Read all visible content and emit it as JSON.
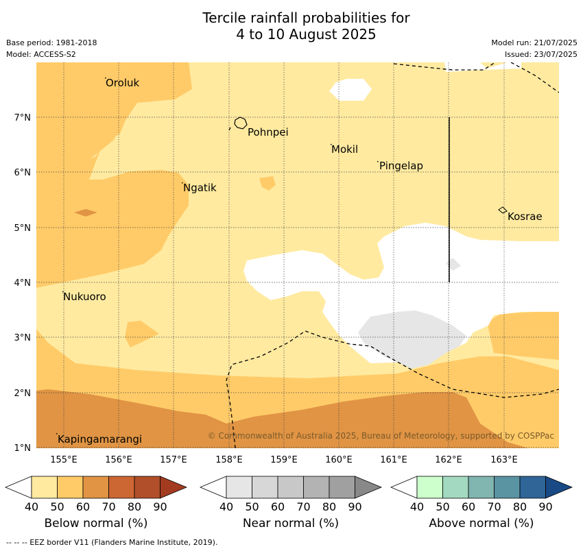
{
  "header": {
    "title_line1": "Tercile rainfall probabilities for",
    "title_line2": "4 to 10 August 2025",
    "base_period": "Base period: 1981-2018",
    "model": "Model: ACCESS-S2",
    "model_run": "Model run: 21/07/2025",
    "issued": "Issued: 23/07/2025"
  },
  "map": {
    "x_ticks": [
      "155°E",
      "156°E",
      "157°E",
      "158°E",
      "159°E",
      "160°E",
      "161°E",
      "162°E",
      "163°E"
    ],
    "y_ticks": [
      "7°N",
      "6°N",
      "5°N",
      "4°N",
      "3°N",
      "2°N",
      "1°N"
    ],
    "places": [
      {
        "name": "Oroluk"
      },
      {
        "name": "Pohnpei"
      },
      {
        "name": "Mokil"
      },
      {
        "name": "Pingelap"
      },
      {
        "name": "Ngatik"
      },
      {
        "name": "Kosrae"
      },
      {
        "name": "Nukuoro"
      },
      {
        "name": "Kapingamarangi"
      }
    ],
    "copyright": "© Commonwealth of Australia 2025, Bureau of Meteorology, supported by COSPPac"
  },
  "colorbars": [
    {
      "label": "Below normal (%)",
      "ticks": [
        "40",
        "50",
        "60",
        "70",
        "80",
        "90"
      ],
      "colors": [
        "#ffeaa0",
        "#ffcb68",
        "#e09444",
        "#cc6633",
        "#b04f2a",
        "#a33b20"
      ]
    },
    {
      "label": "Near normal (%)",
      "ticks": [
        "40",
        "50",
        "60",
        "70",
        "80",
        "90"
      ],
      "colors": [
        "#e6e6e6",
        "#d7d7d7",
        "#c8c8c8",
        "#b3b3b3",
        "#a0a0a0",
        "#888888"
      ]
    },
    {
      "label": "Above normal (%)",
      "ticks": [
        "40",
        "50",
        "60",
        "70",
        "80",
        "90"
      ],
      "colors": [
        "#ccffcc",
        "#a3d9c0",
        "#80b5b0",
        "#5a93a2",
        "#2f6597",
        "#1a4a85"
      ]
    }
  ],
  "footer": "--  --  -- EEZ border V11 (Flanders Marine Institute, 2019)."
}
